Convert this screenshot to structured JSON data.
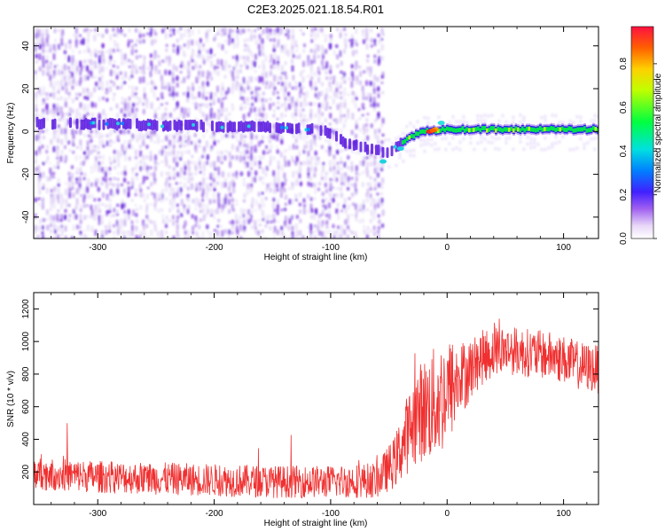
{
  "title": "C2E3.2025.021.18.54.R01",
  "colors": {
    "snr_line": "#f03030",
    "spectro_low": "#d8c8f0",
    "spectro_mid": "#7a20e0",
    "spectro_high": "#00e040",
    "spectro_peak": "#ff2020",
    "axis": "#000000"
  },
  "chart_data": [
    {
      "type": "heatmap",
      "name": "spectrogram",
      "xlabel": "Height of straight line (km)",
      "ylabel": "Frequency (Hz)",
      "xlim": [
        -355,
        130
      ],
      "ylim": [
        -50,
        49
      ],
      "xticks": [
        -300,
        -200,
        -100,
        0,
        100
      ],
      "xtick_labels": [
        "-300",
        "-200",
        "-100",
        "0",
        "100"
      ],
      "yticks": [
        -40,
        -20,
        0,
        20,
        40
      ],
      "ytick_labels": [
        "-40",
        "-20",
        "0",
        "20",
        "40"
      ],
      "noise_region_x": [
        -355,
        -57
      ],
      "signal_track": [
        {
          "x": -355,
          "y": 4
        },
        {
          "x": -250,
          "y": 3
        },
        {
          "x": -150,
          "y": 2
        },
        {
          "x": -110,
          "y": 1
        },
        {
          "x": -85,
          "y": -6
        },
        {
          "x": -60,
          "y": -9
        },
        {
          "x": -50,
          "y": -10
        },
        {
          "x": -35,
          "y": -3
        },
        {
          "x": -20,
          "y": 0
        },
        {
          "x": 0,
          "y": 1
        },
        {
          "x": 50,
          "y": 1
        },
        {
          "x": 130,
          "y": 1
        }
      ],
      "colorbar": {
        "label": "Normalized spectral amplitude",
        "ticks": [
          0.0,
          0.2,
          0.4,
          0.6,
          0.8
        ],
        "tick_labels": [
          "0.0",
          "0.2",
          "0.4",
          "0.6",
          "0.8"
        ],
        "range": [
          0,
          0.97
        ]
      },
      "grid": false
    },
    {
      "type": "line",
      "name": "snr",
      "xlabel": "Height of straight line (km)",
      "ylabel": "SNR (10 * v/v)",
      "xlim": [
        -355,
        130
      ],
      "ylim": [
        0,
        1300
      ],
      "xticks": [
        -300,
        -200,
        -100,
        0,
        100
      ],
      "xtick_labels": [
        "-300",
        "-200",
        "-100",
        "0",
        "100"
      ],
      "yticks": [
        200,
        400,
        600,
        800,
        1000,
        1200
      ],
      "ytick_labels": [
        "200",
        "400",
        "600",
        "800",
        "1000",
        "1200"
      ],
      "series": [
        {
          "x": [
            -355,
            -300,
            -250,
            -200,
            -150,
            -100,
            -60,
            -45,
            -35,
            -25,
            -15,
            -5,
            0,
            5,
            10,
            20,
            30,
            40,
            50,
            60,
            70,
            80,
            90,
            100,
            110,
            120,
            130
          ],
          "center": [
            190,
            170,
            160,
            150,
            140,
            140,
            150,
            260,
            420,
            560,
            600,
            650,
            700,
            720,
            760,
            830,
            900,
            940,
            950,
            940,
            930,
            920,
            910,
            890,
            860,
            840,
            830
          ],
          "spread": [
            100,
            100,
            100,
            100,
            100,
            100,
            110,
            160,
            240,
            300,
            340,
            360,
            330,
            300,
            250,
            190,
            170,
            160,
            150,
            150,
            150,
            150,
            150,
            150,
            150,
            150,
            150
          ]
        }
      ],
      "grid": false
    }
  ]
}
